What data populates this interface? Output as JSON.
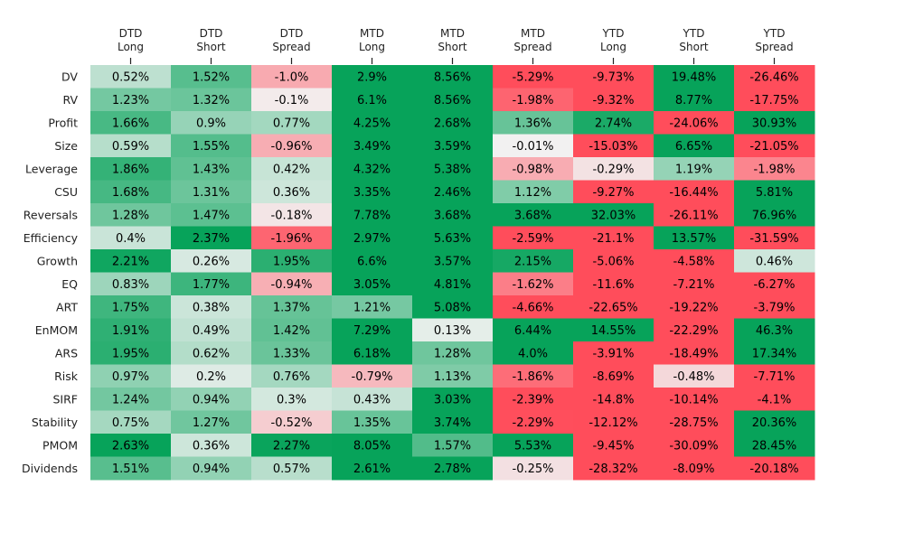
{
  "chart_data": {
    "type": "heatmap",
    "columns": [
      [
        "DTD",
        "Long"
      ],
      [
        "DTD",
        "Short"
      ],
      [
        "DTD",
        "Spread"
      ],
      [
        "MTD",
        "Long"
      ],
      [
        "MTD",
        "Short"
      ],
      [
        "MTD",
        "Spread"
      ],
      [
        "YTD",
        "Long"
      ],
      [
        "YTD",
        "Short"
      ],
      [
        "YTD",
        "Spread"
      ]
    ],
    "rows": [
      "DV",
      "RV",
      "Profit",
      "Size",
      "Leverage",
      "CSU",
      "Reversals",
      "Efficiency",
      "Growth",
      "EQ",
      "ART",
      "EnMOM",
      "ARS",
      "Risk",
      "SIRF",
      "Stability",
      "PMOM",
      "Dividends"
    ],
    "values": [
      [
        0.52,
        1.52,
        -1.0,
        2.9,
        8.56,
        -5.29,
        -9.73,
        19.48,
        -26.46
      ],
      [
        1.23,
        1.32,
        -0.1,
        6.1,
        8.56,
        -1.98,
        -9.32,
        8.77,
        -17.75
      ],
      [
        1.66,
        0.9,
        0.77,
        4.25,
        2.68,
        1.36,
        2.74,
        -24.06,
        30.93
      ],
      [
        0.59,
        1.55,
        -0.96,
        3.49,
        3.59,
        -0.01,
        -15.03,
        6.65,
        -21.05
      ],
      [
        1.86,
        1.43,
        0.42,
        4.32,
        5.38,
        -0.98,
        -0.29,
        1.19,
        -1.98
      ],
      [
        1.68,
        1.31,
        0.36,
        3.35,
        2.46,
        1.12,
        -9.27,
        -16.44,
        5.81
      ],
      [
        1.28,
        1.47,
        -0.18,
        7.78,
        3.68,
        3.68,
        32.03,
        -26.11,
        76.96
      ],
      [
        0.4,
        2.37,
        -1.96,
        2.97,
        5.63,
        -2.59,
        -21.1,
        13.57,
        -31.59
      ],
      [
        2.21,
        0.26,
        1.95,
        6.6,
        3.57,
        2.15,
        -5.06,
        -4.58,
        0.46
      ],
      [
        0.83,
        1.77,
        -0.94,
        3.05,
        4.81,
        -1.62,
        -11.6,
        -7.21,
        -6.27
      ],
      [
        1.75,
        0.38,
        1.37,
        1.21,
        5.08,
        -4.66,
        -22.65,
        -19.22,
        -3.79
      ],
      [
        1.91,
        0.49,
        1.42,
        7.29,
        0.13,
        6.44,
        14.55,
        -22.29,
        46.3
      ],
      [
        1.95,
        0.62,
        1.33,
        6.18,
        1.28,
        4.0,
        -3.91,
        -18.49,
        17.34
      ],
      [
        0.97,
        0.2,
        0.76,
        -0.79,
        1.13,
        -1.86,
        -8.69,
        -0.48,
        -7.71
      ],
      [
        1.24,
        0.94,
        0.3,
        0.43,
        3.03,
        -2.39,
        -14.8,
        -10.14,
        -4.1
      ],
      [
        0.75,
        1.27,
        -0.52,
        1.35,
        3.74,
        -2.29,
        -12.12,
        -28.75,
        20.36
      ],
      [
        2.63,
        0.36,
        2.27,
        8.05,
        1.57,
        5.53,
        -9.45,
        -30.09,
        28.45
      ],
      [
        1.51,
        0.94,
        0.57,
        2.61,
        2.78,
        -0.25,
        -28.32,
        -8.09,
        -20.18
      ]
    ],
    "labels": [
      [
        "0.52%",
        "1.52%",
        "-1.0%",
        "2.9%",
        "8.56%",
        "-5.29%",
        "-9.73%",
        "19.48%",
        "-26.46%"
      ],
      [
        "1.23%",
        "1.32%",
        "-0.1%",
        "6.1%",
        "8.56%",
        "-1.98%",
        "-9.32%",
        "8.77%",
        "-17.75%"
      ],
      [
        "1.66%",
        "0.9%",
        "0.77%",
        "4.25%",
        "2.68%",
        "1.36%",
        "2.74%",
        "-24.06%",
        "30.93%"
      ],
      [
        "0.59%",
        "1.55%",
        "-0.96%",
        "3.49%",
        "3.59%",
        "-0.01%",
        "-15.03%",
        "6.65%",
        "-21.05%"
      ],
      [
        "1.86%",
        "1.43%",
        "0.42%",
        "4.32%",
        "5.38%",
        "-0.98%",
        "-0.29%",
        "1.19%",
        "-1.98%"
      ],
      [
        "1.68%",
        "1.31%",
        "0.36%",
        "3.35%",
        "2.46%",
        "1.12%",
        "-9.27%",
        "-16.44%",
        "5.81%"
      ],
      [
        "1.28%",
        "1.47%",
        "-0.18%",
        "7.78%",
        "3.68%",
        "3.68%",
        "32.03%",
        "-26.11%",
        "76.96%"
      ],
      [
        "0.4%",
        "2.37%",
        "-1.96%",
        "2.97%",
        "5.63%",
        "-2.59%",
        "-21.1%",
        "13.57%",
        "-31.59%"
      ],
      [
        "2.21%",
        "0.26%",
        "1.95%",
        "6.6%",
        "3.57%",
        "2.15%",
        "-5.06%",
        "-4.58%",
        "0.46%"
      ],
      [
        "0.83%",
        "1.77%",
        "-0.94%",
        "3.05%",
        "4.81%",
        "-1.62%",
        "-11.6%",
        "-7.21%",
        "-6.27%"
      ],
      [
        "1.75%",
        "0.38%",
        "1.37%",
        "1.21%",
        "5.08%",
        "-4.66%",
        "-22.65%",
        "-19.22%",
        "-3.79%"
      ],
      [
        "1.91%",
        "0.49%",
        "1.42%",
        "7.29%",
        "0.13%",
        "6.44%",
        "14.55%",
        "-22.29%",
        "46.3%"
      ],
      [
        "1.95%",
        "0.62%",
        "1.33%",
        "6.18%",
        "1.28%",
        "4.0%",
        "-3.91%",
        "-18.49%",
        "17.34%"
      ],
      [
        "0.97%",
        "0.2%",
        "0.76%",
        "-0.79%",
        "1.13%",
        "-1.86%",
        "-8.69%",
        "-0.48%",
        "-7.71%"
      ],
      [
        "1.24%",
        "0.94%",
        "0.3%",
        "0.43%",
        "3.03%",
        "-2.39%",
        "-14.8%",
        "-10.14%",
        "-4.1%"
      ],
      [
        "0.75%",
        "1.27%",
        "-0.52%",
        "1.35%",
        "3.74%",
        "-2.29%",
        "-12.12%",
        "-28.75%",
        "20.36%"
      ],
      [
        "2.63%",
        "0.36%",
        "2.27%",
        "8.05%",
        "1.57%",
        "5.53%",
        "-9.45%",
        "-30.09%",
        "28.45%"
      ],
      [
        "1.51%",
        "0.94%",
        "0.57%",
        "2.61%",
        "2.78%",
        "-0.25%",
        "-28.32%",
        "-8.09%",
        "-20.18%"
      ]
    ],
    "color_scale": {
      "positive": "#07a35a",
      "negative": "#ff4d5b",
      "neutral": "#f2f2f2",
      "saturation_at": {
        "DTD": 2.3,
        "MTD": 2.3,
        "YTD": 3.0
      }
    },
    "xaxis_position": "top",
    "grid": false
  }
}
